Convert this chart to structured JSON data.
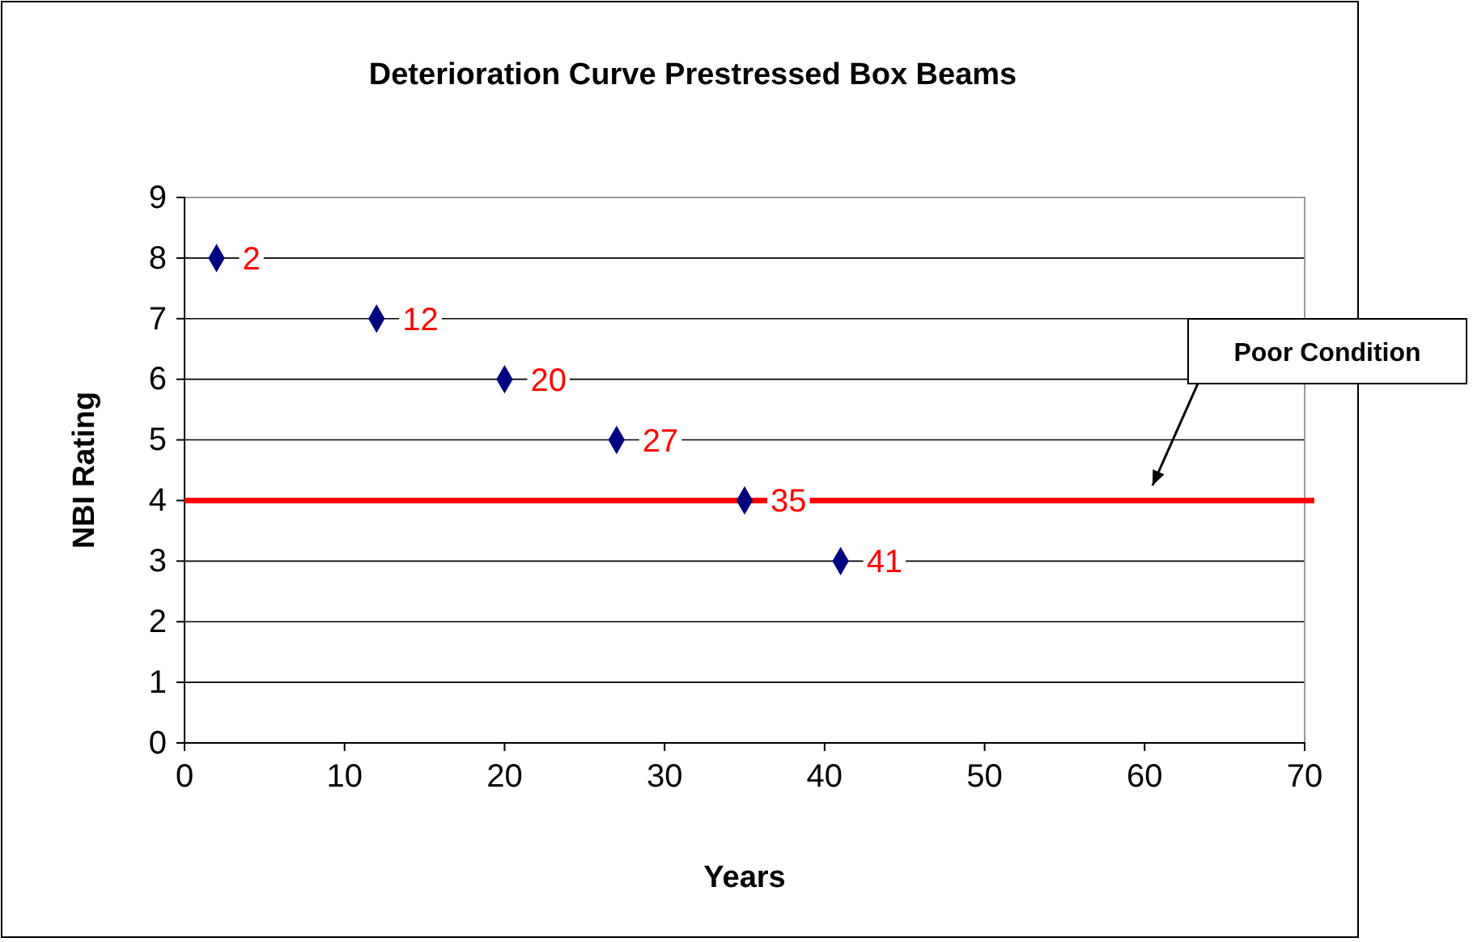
{
  "chart_data": {
    "type": "scatter",
    "title": "Deterioration Curve Prestressed Box Beams",
    "xlabel": "Years",
    "ylabel": "NBI Rating",
    "x": [
      2,
      12,
      20,
      27,
      35,
      41
    ],
    "series": [
      {
        "color": "#000080",
        "values": [
          8,
          7,
          6,
          5,
          4,
          3
        ]
      }
    ],
    "xlim": [
      0,
      70
    ],
    "xticks": [
      0,
      10,
      20,
      30,
      40,
      50,
      60,
      70
    ],
    "ylim": [
      0,
      9
    ],
    "yticks": [
      0,
      1,
      2,
      3,
      4,
      5,
      6,
      7,
      8,
      9
    ],
    "grid": "y",
    "marker": "diamond",
    "ref_lines": [
      {
        "axis": "y",
        "value": 4,
        "color": "#ff0000"
      }
    ],
    "annotations": [
      "Poor Condition",
      {
        "text": "2",
        "x": 2,
        "y": 8
      },
      {
        "text": "12",
        "x": 12,
        "y": 7
      },
      {
        "text": "20",
        "x": 20,
        "y": 6
      },
      {
        "text": "27",
        "x": 27,
        "y": 5
      },
      {
        "text": "35",
        "x": 35,
        "y": 4
      },
      {
        "text": "41",
        "x": 41,
        "y": 3
      }
    ]
  }
}
